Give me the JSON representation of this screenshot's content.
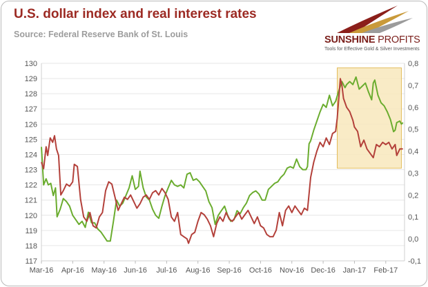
{
  "title": "U.S. dollar index and real interest rates",
  "subtitle": "Source: Federal Reserve Bank of St. Louis",
  "logo": {
    "name_bold": "SUNSHINE",
    "name_light": " PROFITS",
    "tagline": "Tools for Effective Gold & Silver Investments"
  },
  "colors": {
    "dollar": "#6aac2e",
    "rates": "#b3403a",
    "highlight_fill": "#f8e7bc",
    "highlight_stroke": "#e3bd5c",
    "title": "#9c2a23"
  },
  "chart_data": {
    "type": "line",
    "title": "U.S. dollar index and real interest rates",
    "x_ticks": [
      "Mar-16",
      "Apr-16",
      "May-16",
      "Jun-16",
      "Jul-16",
      "Aug-16",
      "Sep-16",
      "Oct-16",
      "Nov-16",
      "Dec-16",
      "Jan-17",
      "Feb-17"
    ],
    "x_range": [
      0,
      11.6
    ],
    "left_axis": {
      "min": 117,
      "max": 130,
      "ticks": [
        "117",
        "118",
        "119",
        "120",
        "121",
        "122",
        "123",
        "124",
        "125",
        "126",
        "127",
        "128",
        "129",
        "130"
      ]
    },
    "right_axis": {
      "min": -0.1,
      "max": 0.8,
      "ticks": [
        "-0,1",
        "0,0",
        "0,1",
        "0,2",
        "0,3",
        "0,4",
        "0,5",
        "0,6",
        "0,7",
        "0,8"
      ]
    },
    "highlight": {
      "x_from": 9.45,
      "x_to": 11.5,
      "y_from": 123.1,
      "y_to": 129.7,
      "axis": "left"
    },
    "series": [
      {
        "axis": "left",
        "points": [
          [
            0,
            124.5
          ],
          [
            0.07,
            122.0
          ],
          [
            0.15,
            122.4
          ],
          [
            0.22,
            122.0
          ],
          [
            0.3,
            122.1
          ],
          [
            0.38,
            121.3
          ],
          [
            0.45,
            121.8
          ],
          [
            0.5,
            119.9
          ],
          [
            0.6,
            120.4
          ],
          [
            0.7,
            121.1
          ],
          [
            0.8,
            120.9
          ],
          [
            0.9,
            120.6
          ],
          [
            1.0,
            120.0
          ],
          [
            1.1,
            119.7
          ],
          [
            1.2,
            119.4
          ],
          [
            1.3,
            119.6
          ],
          [
            1.4,
            119.2
          ],
          [
            1.5,
            120.2
          ],
          [
            1.6,
            119.5
          ],
          [
            1.7,
            119.5
          ],
          [
            1.8,
            119.1
          ],
          [
            1.9,
            118.9
          ],
          [
            2.0,
            118.6
          ],
          [
            2.1,
            118.3
          ],
          [
            2.2,
            118.3
          ],
          [
            2.3,
            119.6
          ],
          [
            2.4,
            121.0
          ],
          [
            2.5,
            120.6
          ],
          [
            2.6,
            120.8
          ],
          [
            2.7,
            121.3
          ],
          [
            2.8,
            121.8
          ],
          [
            2.9,
            122.6
          ],
          [
            3.0,
            121.7
          ],
          [
            3.1,
            121.9
          ],
          [
            3.15,
            122.9
          ],
          [
            3.25,
            121.8
          ],
          [
            3.35,
            121.2
          ],
          [
            3.45,
            121.0
          ],
          [
            3.55,
            120.4
          ],
          [
            3.65,
            120.0
          ],
          [
            3.75,
            119.8
          ],
          [
            3.85,
            120.6
          ],
          [
            3.95,
            121.3
          ],
          [
            4.05,
            121.8
          ],
          [
            4.15,
            122.3
          ],
          [
            4.25,
            122.0
          ],
          [
            4.35,
            121.9
          ],
          [
            4.45,
            122.0
          ],
          [
            4.55,
            121.8
          ],
          [
            4.65,
            122.7
          ],
          [
            4.75,
            122.8
          ],
          [
            4.85,
            122.3
          ],
          [
            4.95,
            122.4
          ],
          [
            5.05,
            122.2
          ],
          [
            5.15,
            121.9
          ],
          [
            5.25,
            121.6
          ],
          [
            5.35,
            120.9
          ],
          [
            5.45,
            120.5
          ],
          [
            5.55,
            119.4
          ],
          [
            5.65,
            120.0
          ],
          [
            5.75,
            120.3
          ],
          [
            5.85,
            120.6
          ],
          [
            5.95,
            120.0
          ],
          [
            6.05,
            119.6
          ],
          [
            6.15,
            119.7
          ],
          [
            6.25,
            120.3
          ],
          [
            6.35,
            120.1
          ],
          [
            6.45,
            120.5
          ],
          [
            6.55,
            120.8
          ],
          [
            6.65,
            121.3
          ],
          [
            6.75,
            121.5
          ],
          [
            6.85,
            121.6
          ],
          [
            6.95,
            121.4
          ],
          [
            7.05,
            121.0
          ],
          [
            7.15,
            121.0
          ],
          [
            7.25,
            121.7
          ],
          [
            7.35,
            121.9
          ],
          [
            7.45,
            122.1
          ],
          [
            7.55,
            122.2
          ],
          [
            7.65,
            122.5
          ],
          [
            7.75,
            122.7
          ],
          [
            7.85,
            123.1
          ],
          [
            7.95,
            123.2
          ],
          [
            8.05,
            123.1
          ],
          [
            8.15,
            123.7
          ],
          [
            8.25,
            123.2
          ],
          [
            8.35,
            123.0
          ],
          [
            8.45,
            123.0
          ],
          [
            8.5,
            123.2
          ],
          [
            8.55,
            124.7
          ],
          [
            8.6,
            124.9
          ],
          [
            8.7,
            125.6
          ],
          [
            8.8,
            126.2
          ],
          [
            8.9,
            126.8
          ],
          [
            9.0,
            127.3
          ],
          [
            9.1,
            127.1
          ],
          [
            9.2,
            127.9
          ],
          [
            9.3,
            127.2
          ],
          [
            9.4,
            127.5
          ],
          [
            9.5,
            128.2
          ],
          [
            9.6,
            128.8
          ],
          [
            9.7,
            128.4
          ],
          [
            9.75,
            128.6
          ],
          [
            9.85,
            128.8
          ],
          [
            9.95,
            128.6
          ],
          [
            10.05,
            129.1
          ],
          [
            10.15,
            128.3
          ],
          [
            10.25,
            128.5
          ],
          [
            10.35,
            128.7
          ],
          [
            10.45,
            128.1
          ],
          [
            10.55,
            127.6
          ],
          [
            10.6,
            128.7
          ],
          [
            10.65,
            128.9
          ],
          [
            10.75,
            127.9
          ],
          [
            10.85,
            127.4
          ],
          [
            10.95,
            127.2
          ],
          [
            11.05,
            126.8
          ],
          [
            11.15,
            126.3
          ],
          [
            11.25,
            125.5
          ],
          [
            11.3,
            125.6
          ],
          [
            11.35,
            126.1
          ],
          [
            11.45,
            126.2
          ],
          [
            11.5,
            126.0
          ],
          [
            11.55,
            126.1
          ]
        ]
      },
      {
        "axis": "right",
        "points": [
          [
            0,
            0.35
          ],
          [
            0.07,
            0.32
          ],
          [
            0.15,
            0.42
          ],
          [
            0.2,
            0.38
          ],
          [
            0.28,
            0.46
          ],
          [
            0.36,
            0.44
          ],
          [
            0.42,
            0.47
          ],
          [
            0.48,
            0.41
          ],
          [
            0.55,
            0.38
          ],
          [
            0.62,
            0.2
          ],
          [
            0.7,
            0.22
          ],
          [
            0.8,
            0.25
          ],
          [
            0.9,
            0.24
          ],
          [
            1.0,
            0.26
          ],
          [
            1.05,
            0.34
          ],
          [
            1.15,
            0.33
          ],
          [
            1.25,
            0.18
          ],
          [
            1.35,
            0.1
          ],
          [
            1.45,
            0.08
          ],
          [
            1.55,
            0.12
          ],
          [
            1.65,
            0.06
          ],
          [
            1.75,
            0.05
          ],
          [
            1.85,
            0.1
          ],
          [
            1.95,
            0.12
          ],
          [
            2.05,
            0.22
          ],
          [
            2.15,
            0.26
          ],
          [
            2.25,
            0.25
          ],
          [
            2.35,
            0.19
          ],
          [
            2.45,
            0.13
          ],
          [
            2.55,
            0.16
          ],
          [
            2.65,
            0.19
          ],
          [
            2.75,
            0.18
          ],
          [
            2.85,
            0.2
          ],
          [
            2.95,
            0.17
          ],
          [
            3.05,
            0.14
          ],
          [
            3.15,
            0.16
          ],
          [
            3.25,
            0.19
          ],
          [
            3.35,
            0.2
          ],
          [
            3.45,
            0.18
          ],
          [
            3.55,
            0.21
          ],
          [
            3.65,
            0.22
          ],
          [
            3.75,
            0.2
          ],
          [
            3.85,
            0.23
          ],
          [
            3.95,
            0.21
          ],
          [
            4.05,
            0.18
          ],
          [
            4.15,
            0.1
          ],
          [
            4.25,
            0.08
          ],
          [
            4.35,
            0.12
          ],
          [
            4.45,
            0.02
          ],
          [
            4.55,
            0.01
          ],
          [
            4.65,
            0.0
          ],
          [
            4.7,
            -0.02
          ],
          [
            4.8,
            0.02
          ],
          [
            4.9,
            0.03
          ],
          [
            5.0,
            0.08
          ],
          [
            5.1,
            0.12
          ],
          [
            5.2,
            0.11
          ],
          [
            5.3,
            0.09
          ],
          [
            5.4,
            0.06
          ],
          [
            5.5,
            0.01
          ],
          [
            5.6,
            0.07
          ],
          [
            5.7,
            0.1
          ],
          [
            5.8,
            0.08
          ],
          [
            5.9,
            0.12
          ],
          [
            6.0,
            0.09
          ],
          [
            6.1,
            0.08
          ],
          [
            6.2,
            0.1
          ],
          [
            6.3,
            0.12
          ],
          [
            6.4,
            0.09
          ],
          [
            6.5,
            0.11
          ],
          [
            6.6,
            0.13
          ],
          [
            6.7,
            0.1
          ],
          [
            6.8,
            0.07
          ],
          [
            6.9,
            0.1
          ],
          [
            7.0,
            0.06
          ],
          [
            7.1,
            0.05
          ],
          [
            7.2,
            0.02
          ],
          [
            7.3,
            0.01
          ],
          [
            7.4,
            0.01
          ],
          [
            7.5,
            0.04
          ],
          [
            7.6,
            0.12
          ],
          [
            7.7,
            0.06
          ],
          [
            7.8,
            0.13
          ],
          [
            7.9,
            0.15
          ],
          [
            8.0,
            0.12
          ],
          [
            8.1,
            0.15
          ],
          [
            8.2,
            0.13
          ],
          [
            8.3,
            0.11
          ],
          [
            8.4,
            0.14
          ],
          [
            8.5,
            0.13
          ],
          [
            8.6,
            0.28
          ],
          [
            8.7,
            0.35
          ],
          [
            8.8,
            0.4
          ],
          [
            8.9,
            0.44
          ],
          [
            9.0,
            0.42
          ],
          [
            9.1,
            0.46
          ],
          [
            9.2,
            0.43
          ],
          [
            9.3,
            0.48
          ],
          [
            9.4,
            0.49
          ],
          [
            9.45,
            0.55
          ],
          [
            9.55,
            0.73
          ],
          [
            9.6,
            0.7
          ],
          [
            9.65,
            0.64
          ],
          [
            9.75,
            0.6
          ],
          [
            9.85,
            0.58
          ],
          [
            9.95,
            0.54
          ],
          [
            10.0,
            0.51
          ],
          [
            10.1,
            0.49
          ],
          [
            10.2,
            0.42
          ],
          [
            10.3,
            0.45
          ],
          [
            10.4,
            0.41
          ],
          [
            10.5,
            0.39
          ],
          [
            10.6,
            0.37
          ],
          [
            10.7,
            0.43
          ],
          [
            10.8,
            0.42
          ],
          [
            10.9,
            0.44
          ],
          [
            11.0,
            0.43
          ],
          [
            11.1,
            0.44
          ],
          [
            11.2,
            0.41
          ],
          [
            11.3,
            0.43
          ],
          [
            11.35,
            0.38
          ],
          [
            11.45,
            0.41
          ],
          [
            11.55,
            0.41
          ]
        ]
      }
    ]
  }
}
